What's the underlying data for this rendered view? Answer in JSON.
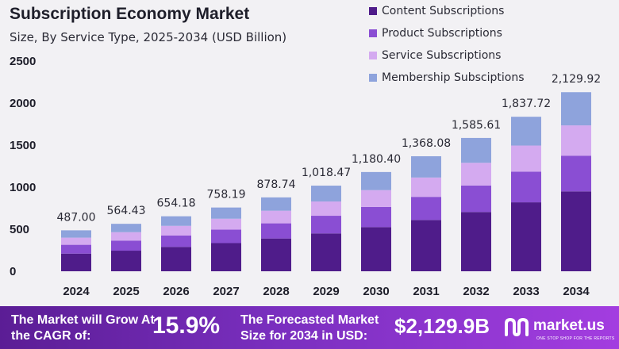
{
  "chart_data": {
    "type": "bar",
    "stacked": true,
    "title": "Subscription Economy Market",
    "subtitle": "Size, By Service Type, 2025-2034 (USD Billion)",
    "categories": [
      "2024",
      "2025",
      "2026",
      "2027",
      "2028",
      "2029",
      "2030",
      "2031",
      "2032",
      "2033",
      "2034"
    ],
    "series": [
      {
        "name": "Content Subscriptions",
        "color": "#4f1c8a",
        "values": [
          210,
          245,
          290,
          335,
          390,
          450,
          525,
          610,
          705,
          820,
          950
        ]
      },
      {
        "name": "Product Subscriptions",
        "color": "#8a4ed3",
        "values": [
          105,
          120,
          135,
          160,
          180,
          210,
          240,
          275,
          315,
          365,
          425
        ]
      },
      {
        "name": "Service Subscriptions",
        "color": "#d4aaf0",
        "values": [
          85,
          100,
          115,
          130,
          150,
          170,
          200,
          230,
          270,
          310,
          360
        ]
      },
      {
        "name": "Membership Subsciptions",
        "color": "#8ea3dc",
        "values": [
          87,
          99.43,
          114.18,
          133.19,
          158.74,
          188.47,
          215.4,
          253.08,
          295.61,
          342.72,
          394.92
        ]
      }
    ],
    "totals": [
      "487.00",
      "564.43",
      "654.18",
      "758.19",
      "878.74",
      "1,018.47",
      "1,180.40",
      "1,368.08",
      "1,585.61",
      "1,837.72",
      "2,129.92"
    ],
    "yticks": [
      "0",
      "500",
      "1000",
      "1500",
      "2000",
      "2500"
    ],
    "ylim": [
      0,
      2500
    ],
    "legend_position": "top-right",
    "grid": false
  },
  "footer": {
    "cagr_label": "The Market will Grow At the CAGR of:",
    "cagr_value": "15.9%",
    "forecast_label": "The Forecasted Market Size for 2034 in USD:",
    "forecast_value": "$2,129.9B",
    "brand": "market.us",
    "brand_tagline": "ONE STOP SHOP FOR THE REPORTS",
    "logo_icon": "market-us-logo-icon"
  }
}
